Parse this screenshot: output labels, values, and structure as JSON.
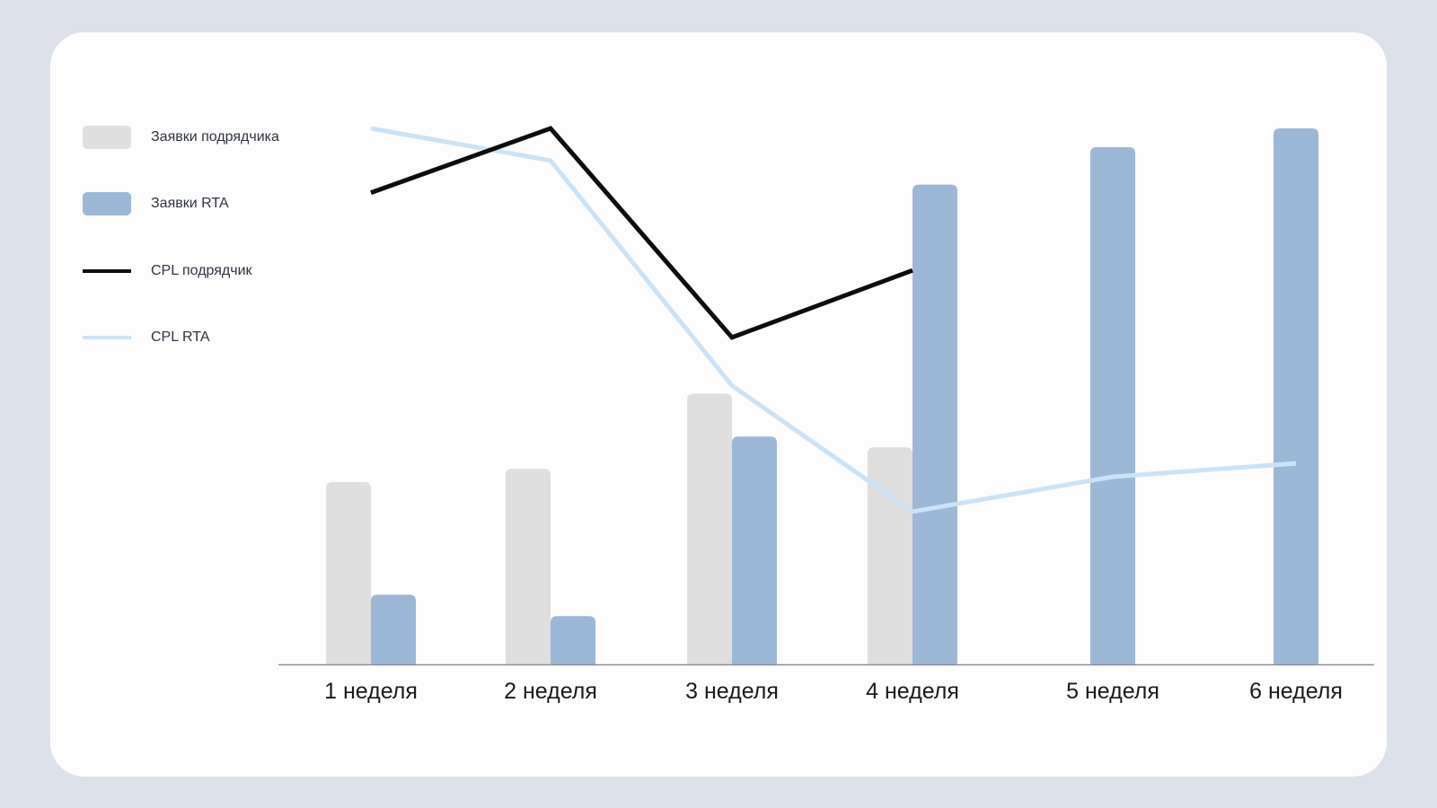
{
  "legend": [
    {
      "label": "Заявки подрядчика",
      "kind": "bar",
      "color": "#DFDFDF"
    },
    {
      "label": "Заявки RTA",
      "kind": "bar",
      "color": "#9CB8D7"
    },
    {
      "label": "CPL подрядчик",
      "kind": "line",
      "color": "#0D0D0D"
    },
    {
      "label": "CPL RTA",
      "kind": "line",
      "color": "#CBE3F7"
    }
  ],
  "chart_data": {
    "type": "bar",
    "categories": [
      "1 неделя",
      "2 неделя",
      "3 неделя",
      "4 неделя",
      "5 неделя",
      "6 неделя"
    ],
    "series": [
      {
        "name": "Заявки подрядчика",
        "type": "bar",
        "color": "#DFDFDF",
        "values": [
          34,
          36.5,
          50.5,
          40.5,
          null,
          null
        ]
      },
      {
        "name": "Заявки RTA",
        "type": "bar",
        "color": "#9CB8D7",
        "values": [
          13,
          9,
          42.5,
          89.5,
          96.5,
          100
        ]
      },
      {
        "name": "CPL подрядчик",
        "type": "line",
        "color": "#0D0D0D",
        "values": [
          88,
          100,
          61,
          73.5,
          null,
          null
        ]
      },
      {
        "name": "CPL RTA",
        "type": "line",
        "color": "#CBE3F7",
        "values": [
          100,
          94,
          52,
          28.5,
          35,
          37.5
        ]
      }
    ],
    "ylim": [
      0,
      100
    ],
    "grid": false,
    "legend_position": "left"
  }
}
